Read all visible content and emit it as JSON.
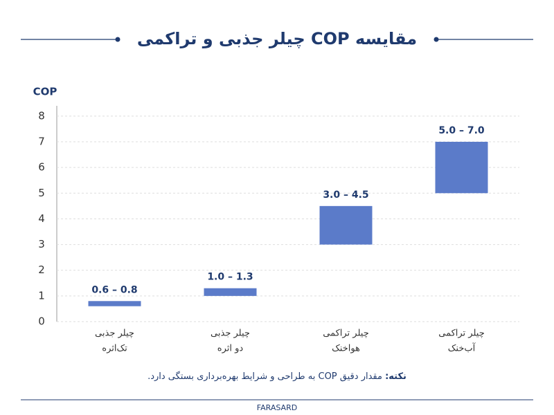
{
  "chart_data": {
    "type": "range-bar",
    "title": "مقایسه COP چیلر جذبی و تراکمی",
    "y_label": "COP",
    "categories": [
      [
        "چیلر جذبی",
        "تک‌اثره"
      ],
      [
        "چیلر جذبی",
        "دو اثره"
      ],
      [
        "چیلر تراکمی",
        "هواخنک"
      ],
      [
        "چیلر تراکمی",
        "آب‌خنک"
      ]
    ],
    "ranges": [
      [
        0.6,
        0.8
      ],
      [
        1.0,
        1.3
      ],
      [
        3.0,
        4.5
      ],
      [
        5.0,
        7.0
      ]
    ],
    "value_labels": [
      "0.6 – 0.8",
      "1.0 – 1.3",
      "3.0 – 4.5",
      "5.0 – 7.0"
    ],
    "color": "#5b7bc9",
    "ylim": [
      0,
      8.4
    ],
    "yticks": [
      0,
      1,
      2,
      3,
      4,
      5,
      6,
      7,
      8
    ],
    "grid": true,
    "note": {
      "label": "نکته:",
      "text": "مقدار دقیق COP به طراحی و شرایط بهره‌برداری بستگی دارد."
    },
    "footer": "FARASARD"
  }
}
